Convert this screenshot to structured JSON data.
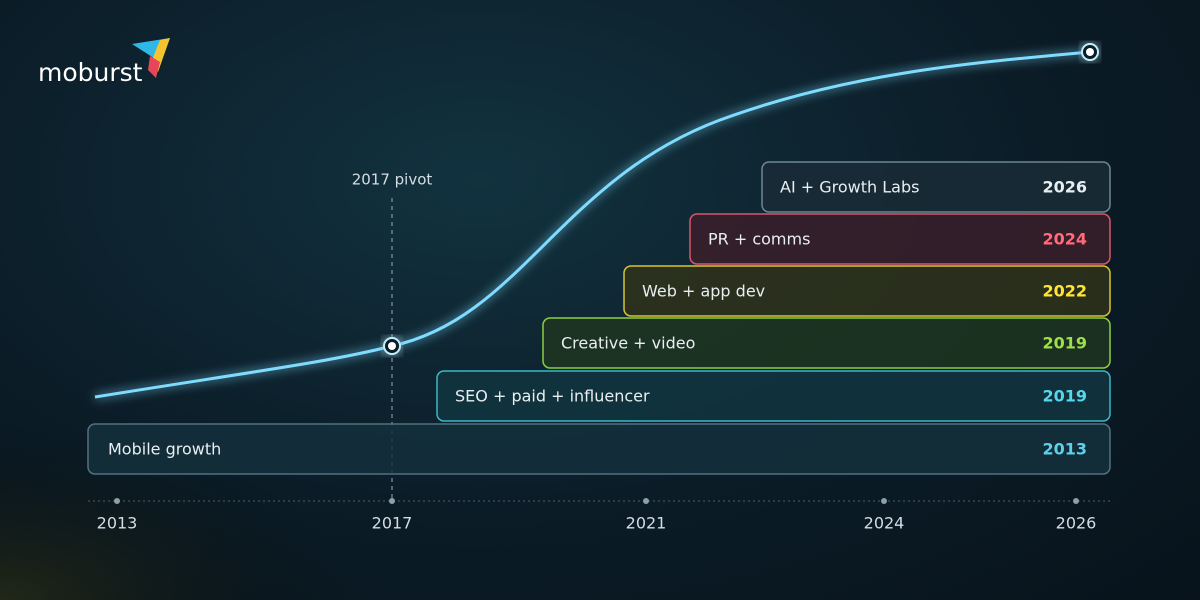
{
  "logo": "moburst",
  "annotation": "2017 pivot",
  "layers": [
    {
      "label": "AI + Growth Labs",
      "year": "2026"
    },
    {
      "label": "PR + comms",
      "year": "2024"
    },
    {
      "label": "Web + app dev",
      "year": "2022"
    },
    {
      "label": "Creative + video",
      "year": "2019"
    },
    {
      "label": "SEO + paid + influencer",
      "year": "2019"
    },
    {
      "label": "Mobile growth",
      "year": "2013"
    }
  ],
  "axis": [
    "2013",
    "2017",
    "2021",
    "2024",
    "2026"
  ]
}
